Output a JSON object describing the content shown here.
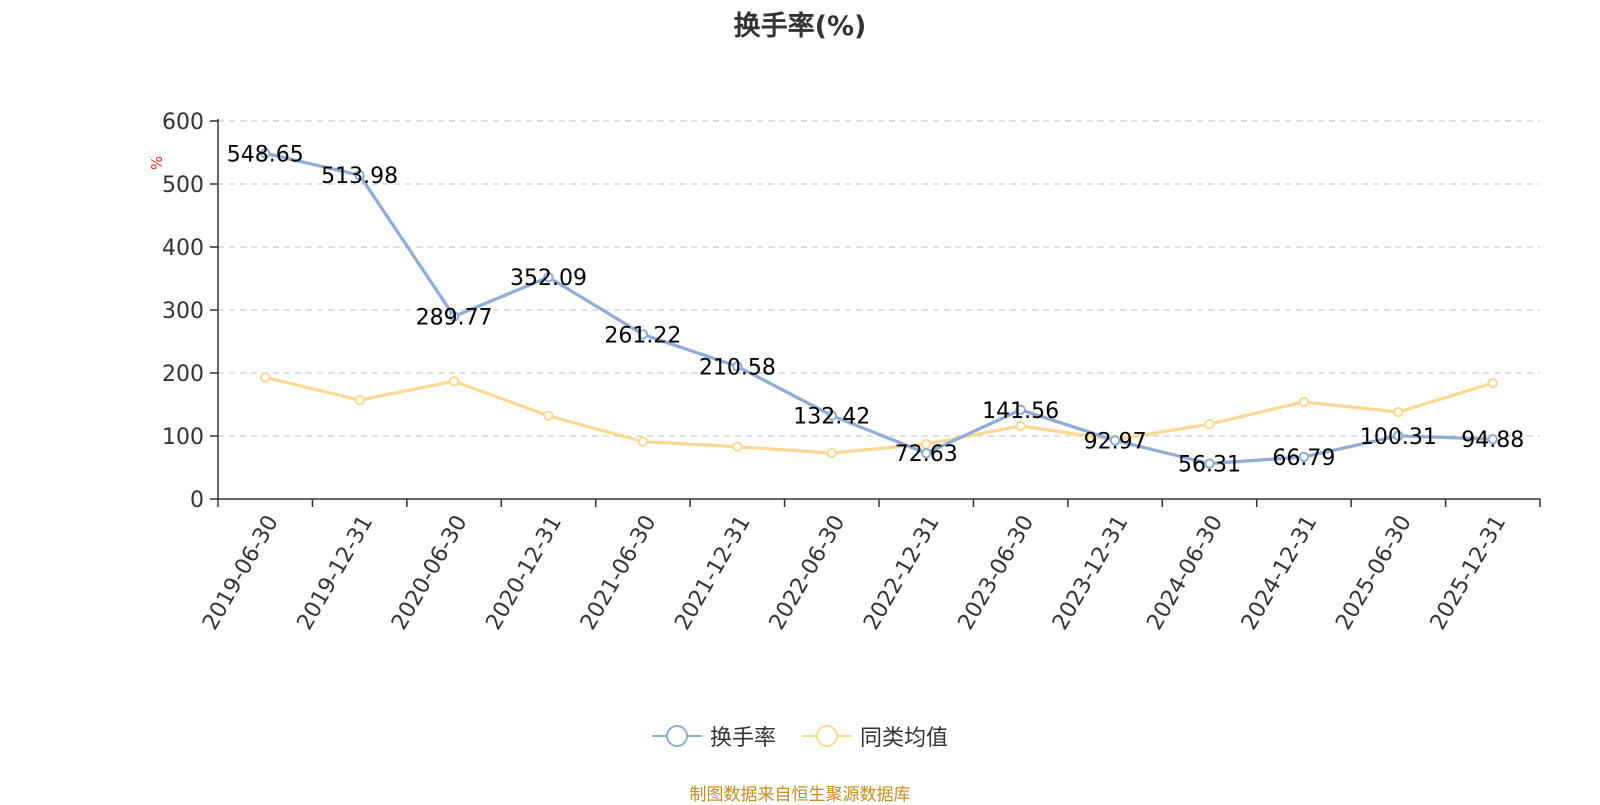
{
  "chart_data": {
    "type": "line",
    "title": "换手率(%)",
    "ylabel": "%",
    "xlabel": "",
    "ylim": [
      0,
      600
    ],
    "yticks": [
      0,
      100,
      200,
      300,
      400,
      500,
      600
    ],
    "grid": true,
    "legend_position": "bottom-center",
    "categories": [
      "2019-06-30",
      "2019-12-31",
      "2020-06-30",
      "2020-12-31",
      "2021-06-30",
      "2021-12-31",
      "2022-06-30",
      "2022-12-31",
      "2023-06-30",
      "2023-12-31",
      "2024-06-30",
      "2024-12-31",
      "2025-06-30",
      "2025-12-31"
    ],
    "series": [
      {
        "name": "换手率",
        "color": "#8fabd6",
        "values": [
          548.65,
          513.98,
          289.77,
          352.09,
          261.22,
          210.58,
          132.42,
          72.63,
          141.56,
          92.97,
          56.31,
          66.79,
          100.31,
          94.88
        ],
        "labels": [
          "548.65",
          "513.98",
          "289.77",
          "352.09",
          "261.22",
          "210.58",
          "132.42",
          "72.63",
          "141.56",
          "92.97",
          "56.31",
          "66.79",
          "100.31",
          "94.88"
        ]
      },
      {
        "name": "同类均值",
        "color": "#fcd791",
        "values": [
          193,
          157,
          187,
          132,
          91,
          83,
          73,
          87,
          116,
          94,
          119,
          154,
          138,
          184
        ]
      }
    ]
  },
  "source": "制图数据来自恒生聚源数据库"
}
